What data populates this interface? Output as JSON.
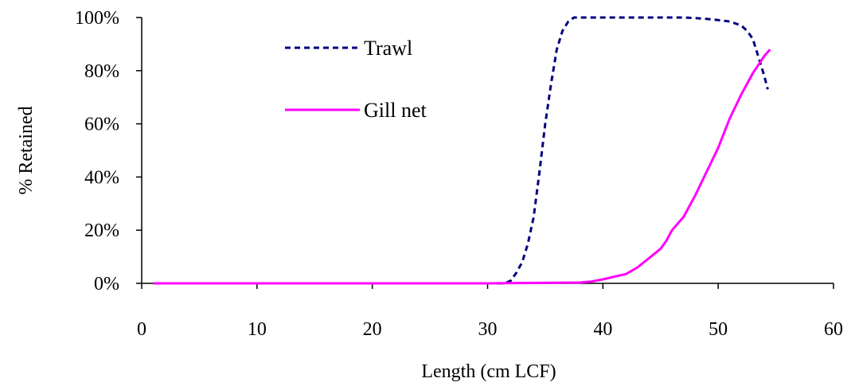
{
  "chart_data": {
    "type": "line",
    "title": "",
    "xlabel": "Length (cm LCF)",
    "ylabel": "% Retained",
    "xlim": [
      0,
      60
    ],
    "ylim": [
      0,
      100
    ],
    "x_ticks": [
      "0",
      "10",
      "20",
      "30",
      "40",
      "50",
      "60"
    ],
    "y_ticks": [
      "0%",
      "20%",
      "40%",
      "60%",
      "80%",
      "100%"
    ],
    "grid": false,
    "legend_position": "top-left",
    "series": [
      {
        "name": "Trawl",
        "color": "#000080",
        "style": "dashed",
        "points": [
          [
            1,
            0
          ],
          [
            31.5,
            0
          ],
          [
            32,
            1
          ],
          [
            32.5,
            4
          ],
          [
            33,
            8
          ],
          [
            33.5,
            15
          ],
          [
            34,
            25
          ],
          [
            34.5,
            42
          ],
          [
            35,
            60
          ],
          [
            35.5,
            75
          ],
          [
            36,
            88
          ],
          [
            36.5,
            95
          ],
          [
            37,
            98.5
          ],
          [
            37.5,
            100
          ],
          [
            40,
            100
          ],
          [
            45,
            100
          ],
          [
            47,
            100
          ],
          [
            48,
            99.8
          ],
          [
            49,
            99.5
          ],
          [
            50,
            99
          ],
          [
            51,
            98.5
          ],
          [
            52,
            97
          ],
          [
            52.5,
            95
          ],
          [
            53,
            92
          ],
          [
            53.5,
            85
          ],
          [
            54,
            78
          ],
          [
            54.3,
            73
          ]
        ]
      },
      {
        "name": "Gill net",
        "color": "#ff00ff",
        "style": "solid",
        "points": [
          [
            1,
            0
          ],
          [
            30,
            0
          ],
          [
            38,
            0.3
          ],
          [
            39,
            0.7
          ],
          [
            40,
            1.5
          ],
          [
            41,
            2.5
          ],
          [
            42,
            3.5
          ],
          [
            43,
            6
          ],
          [
            44,
            9.5
          ],
          [
            45,
            13
          ],
          [
            45.5,
            16
          ],
          [
            46,
            20
          ],
          [
            47,
            25
          ],
          [
            48,
            33
          ],
          [
            49,
            42
          ],
          [
            50,
            51
          ],
          [
            51,
            62
          ],
          [
            52,
            71
          ],
          [
            53,
            79
          ],
          [
            54,
            85.5
          ],
          [
            54.5,
            88
          ]
        ]
      }
    ]
  }
}
